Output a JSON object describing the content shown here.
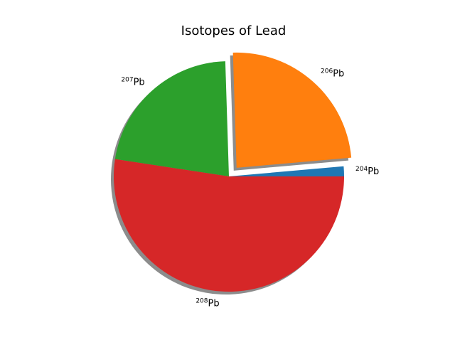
{
  "chart_data": {
    "type": "pie",
    "title": "Isotopes of Lead",
    "slices": [
      {
        "label_mass": "204",
        "label_element": "Pb",
        "value": 1.4,
        "color": "#1f77b4",
        "explode": 0.0
      },
      {
        "label_mass": "206",
        "label_element": "Pb",
        "value": 24.1,
        "color": "#ff7f0e",
        "explode": 0.1
      },
      {
        "label_mass": "207",
        "label_element": "Pb",
        "value": 22.1,
        "color": "#2ca02c",
        "explode": 0.0
      },
      {
        "label_mass": "208",
        "label_element": "Pb",
        "value": 52.4,
        "color": "#d62728",
        "explode": 0.0
      }
    ],
    "start_angle_deg": 0,
    "direction": "counterclockwise",
    "shadow": true
  }
}
